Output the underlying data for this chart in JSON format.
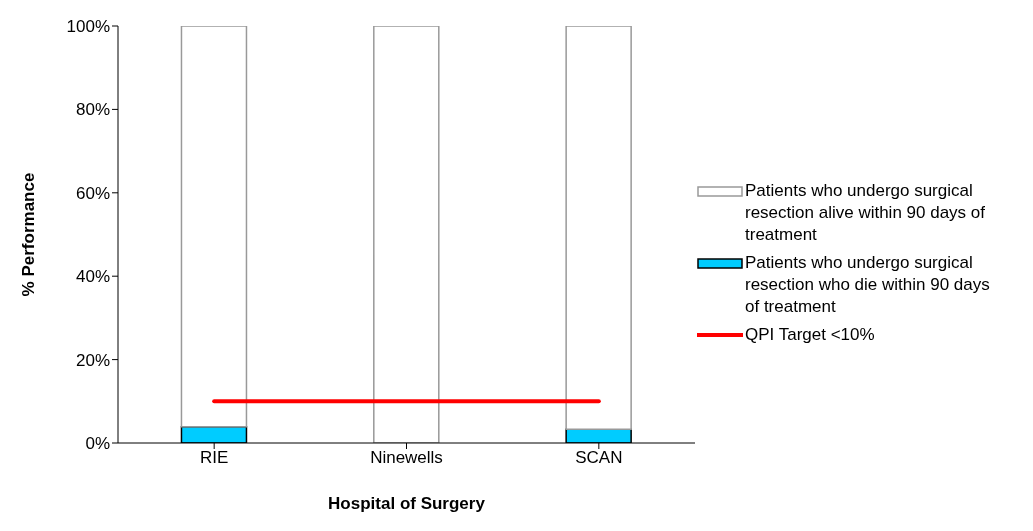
{
  "chart_data": {
    "type": "bar",
    "stacked": true,
    "xlabel": "Hospital of Surgery",
    "ylabel": "% Performance",
    "categories": [
      "RIE",
      "Ninewells",
      "SCAN"
    ],
    "series": [
      {
        "name": "Patients who undergo surgical resection who die within 90 days of treatment",
        "color": "#00ccff",
        "values": [
          3.9,
          0,
          3.3
        ]
      },
      {
        "name": "Patients who undergo surgical resection alive within 90 days of treatment",
        "color": "#ffffff",
        "values": [
          96.1,
          100,
          96.7
        ]
      },
      {
        "name": "QPI Target <10%",
        "type": "line",
        "color": "#ff0000",
        "values": [
          10,
          10,
          10
        ]
      }
    ],
    "ylim": [
      0,
      100
    ],
    "yticks": [
      {
        "value": 0,
        "label": "0%"
      },
      {
        "value": 20,
        "label": "20%"
      },
      {
        "value": 40,
        "label": "40%"
      },
      {
        "value": 60,
        "label": "60%"
      },
      {
        "value": 80,
        "label": "80%"
      },
      {
        "value": 100,
        "label": "100%"
      }
    ],
    "grid": false,
    "legend": "right",
    "marker": "none",
    "line_style": "solid"
  }
}
